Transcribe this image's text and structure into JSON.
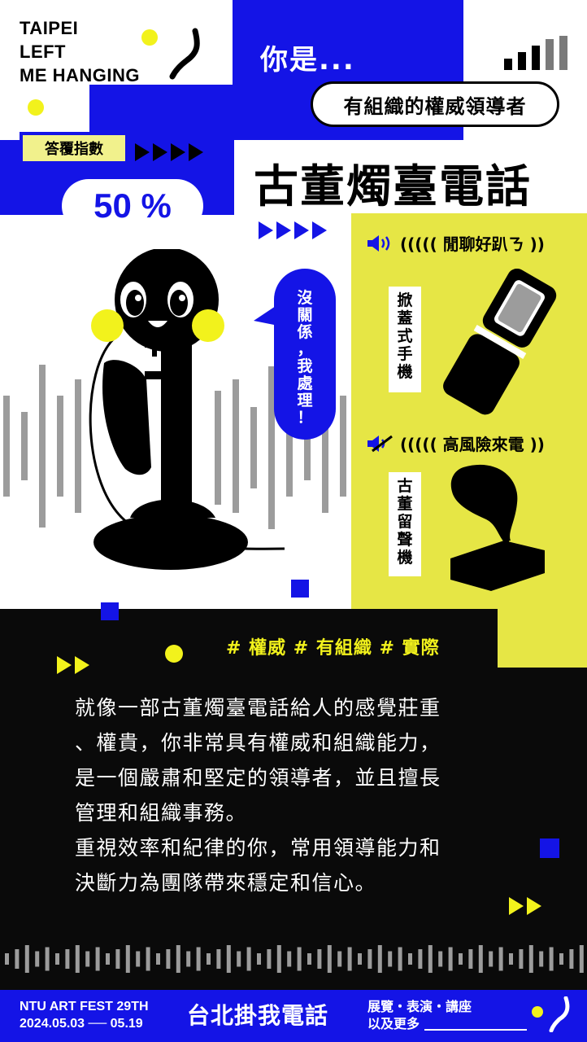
{
  "brand": {
    "line1": "TAIPEI",
    "line2": "LEFT",
    "line3": "ME HANGING"
  },
  "header": {
    "you_are": "你是...",
    "persona": "有組織的權威領導者"
  },
  "score": {
    "label": "答覆指數",
    "value": "50 %"
  },
  "phone_title": "古董燭臺電話",
  "speech_bubble": [
    "沒",
    "關",
    "係",
    "，",
    "我",
    "處",
    "理",
    "！"
  ],
  "matches": [
    {
      "category": "((((( 閒聊好趴ㄋ ))",
      "icon": "speaker-on-icon",
      "item": [
        "掀",
        "蓋",
        "式",
        "手",
        "機"
      ]
    },
    {
      "category": "((((( 高風險來電 ))",
      "icon": "speaker-muted-icon",
      "item": [
        "古",
        "董",
        "留",
        "聲",
        "機"
      ]
    }
  ],
  "hashtags": "# 權威 # 有組織 # 實際",
  "description": [
    "就像一部古董燭臺電話給人的感覺莊重",
    "、權貴，你非常具有權威和組織能力，",
    "是一個嚴肅和堅定的領導者，並且擅長",
    "管理和組織事務。",
    "重視效率和紀律的你，常用領導能力和",
    "決斷力為團隊帶來穩定和信心。"
  ],
  "footer": {
    "fest_line1": "NTU ART FEST 29TH",
    "fest_line2": "2024.05.03 ── 05.19",
    "title": "台北掛我電話",
    "more_line1": "展覽・表演・講座",
    "more_line2": "以及更多"
  },
  "colors": {
    "blue": "#1414e6",
    "yellow": "#e6e645",
    "black": "#0a0a0a",
    "accent_dot": "#f2f21c"
  }
}
